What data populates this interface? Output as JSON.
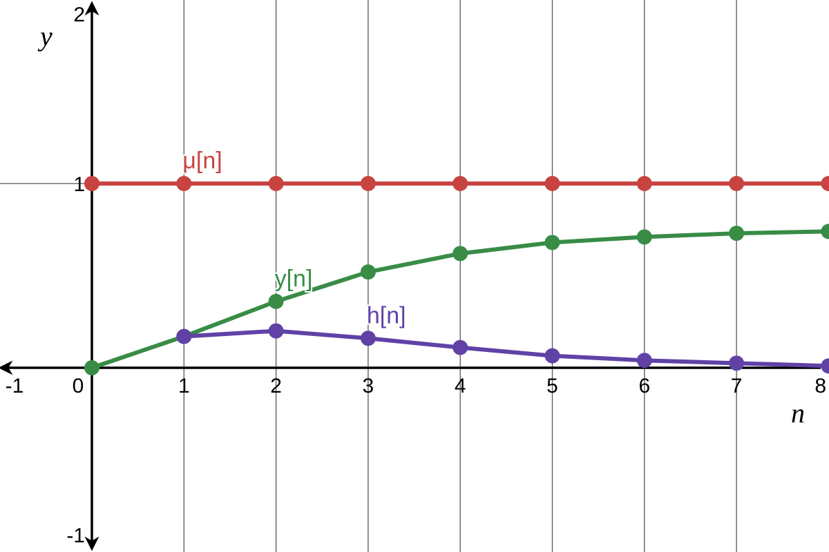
{
  "chart_data": {
    "type": "line",
    "xlabel": "n",
    "ylabel": "y",
    "xlim": [
      -1,
      8
    ],
    "ylim": [
      -1,
      2
    ],
    "x_ticks": [
      "-1",
      "0",
      "1",
      "2",
      "3",
      "4",
      "5",
      "6",
      "7",
      "8"
    ],
    "y_ticks": [
      "2",
      "1",
      "-1"
    ],
    "grid": "vertical lines at each integer n, horizontal line at y = 1",
    "series": [
      {
        "name": "μ[n]",
        "color": "#c74440",
        "x": [
          0,
          1,
          2,
          3,
          4,
          5,
          6,
          7,
          8
        ],
        "values": [
          1,
          1,
          1,
          1,
          1,
          1,
          1,
          1,
          1
        ],
        "label_at": [
          1,
          1
        ]
      },
      {
        "name": "y[n]",
        "color": "#388c46",
        "x": [
          0,
          1,
          2,
          3,
          4,
          5,
          6,
          7,
          8
        ],
        "values": [
          0,
          0.17,
          0.36,
          0.52,
          0.62,
          0.68,
          0.71,
          0.73,
          0.74
        ],
        "label_at": [
          2,
          0.36
        ]
      },
      {
        "name": "h[n]",
        "color": "#6042a6",
        "x": [
          1,
          2,
          3,
          4,
          5,
          6,
          7,
          8
        ],
        "values": [
          0.17,
          0.2,
          0.16,
          0.11,
          0.065,
          0.04,
          0.025,
          0.01
        ],
        "label_at": [
          3,
          0.16
        ]
      }
    ]
  }
}
